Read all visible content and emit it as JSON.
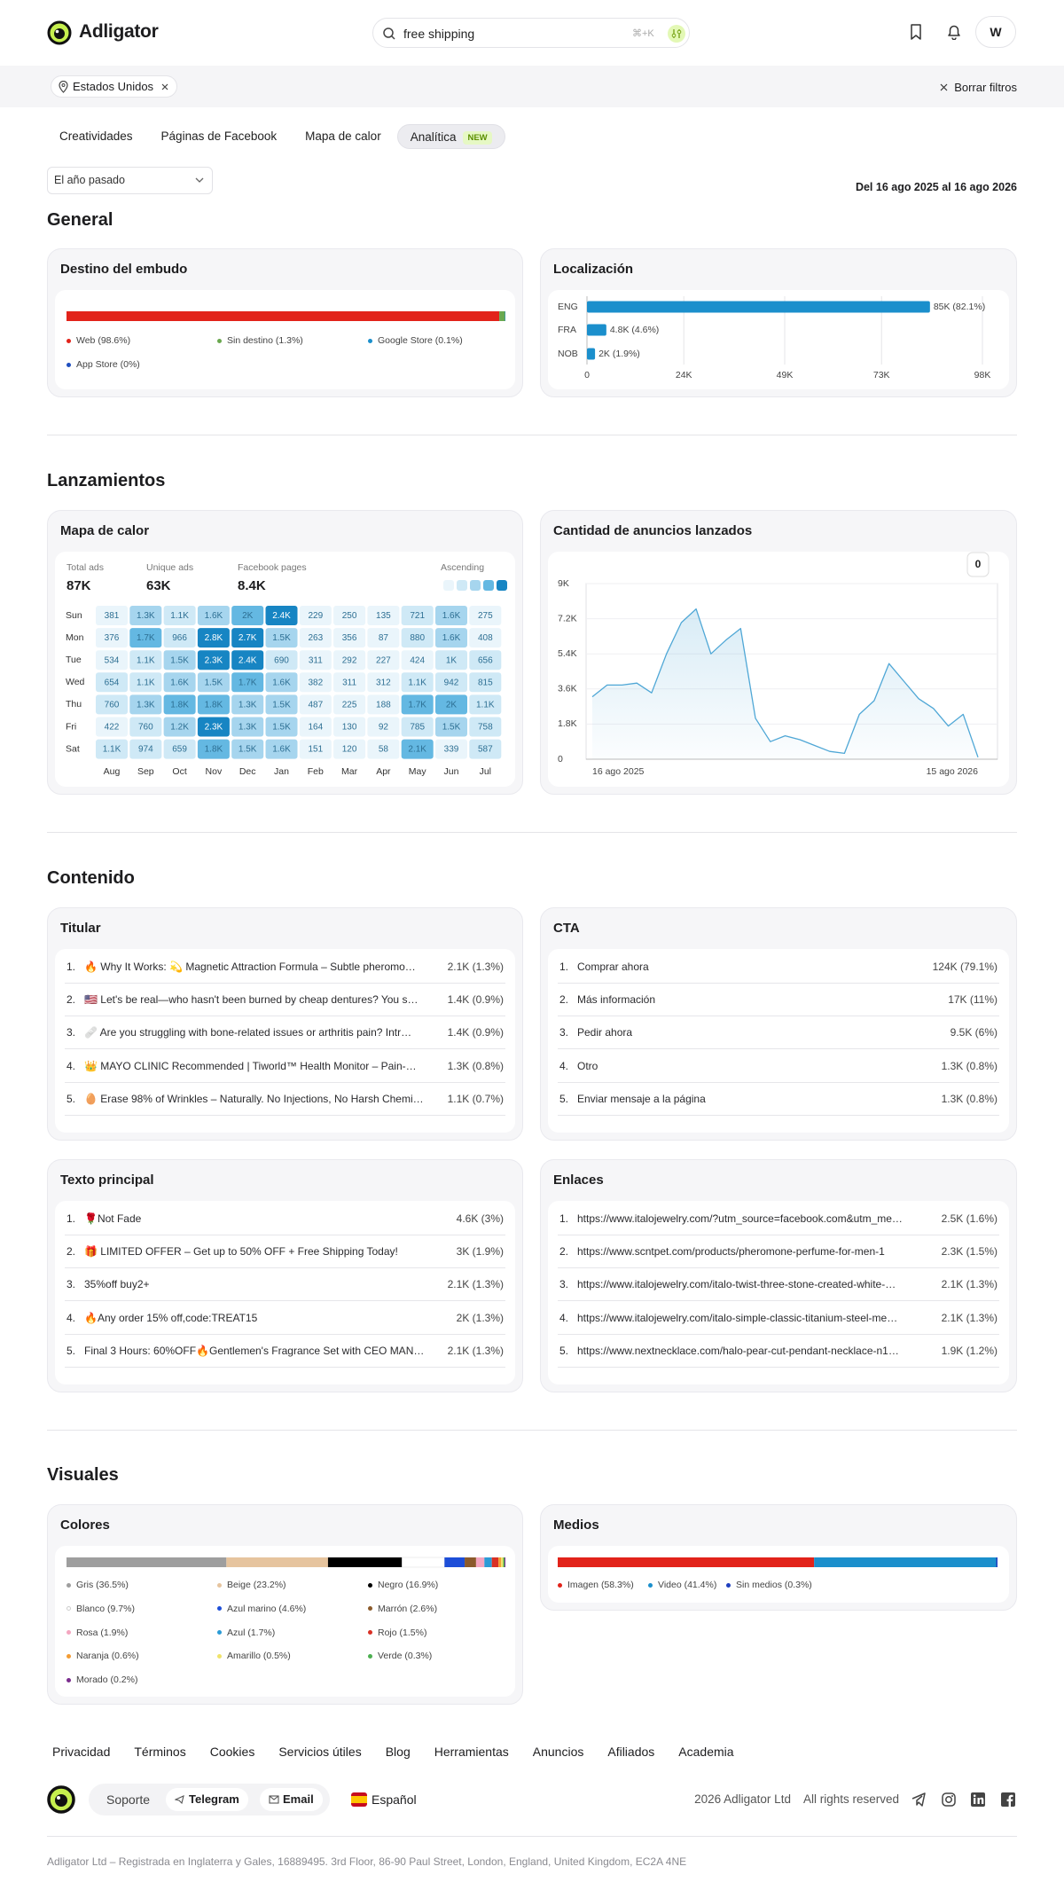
{
  "header": {
    "brand": "Adligator",
    "search": "free shipping",
    "shortcut": "⌘+K",
    "avatar": "W"
  },
  "filters": {
    "chip": "Estados Unidos",
    "clear": "Borrar filtros"
  },
  "tabs": {
    "items": [
      "Creatividades",
      "Páginas de Facebook",
      "Mapa de calor",
      "Analítica"
    ],
    "badge": "NEW",
    "active": 3
  },
  "period": "El año pasado",
  "date_range": "Del 16 ago 2025 al 16 ago 2026",
  "sections": {
    "general": "General",
    "launches": "Lanzamientos",
    "content": "Contenido",
    "visuals": "Visuales"
  },
  "funnel": {
    "title": "Destino del embudo",
    "type": "stacked-bar",
    "segments": [
      {
        "label": "Web (98.6%)",
        "value": 98.6,
        "color": "#e2231a"
      },
      {
        "label": "Sin destino (1.3%)",
        "value": 1.3,
        "color": "#6aa84f"
      },
      {
        "label": "Google Store (0.1%)",
        "value": 0.1,
        "color": "#1b8fcc"
      },
      {
        "label": "App Store (0%)",
        "value": 0,
        "color": "#1f4fbf"
      }
    ]
  },
  "localization": {
    "title": "Localización",
    "type": "bar",
    "categories": [
      "ENG",
      "FRA",
      "NOB"
    ],
    "values": [
      85000,
      4800,
      2000
    ],
    "value_labels": [
      "85K (82.1%)",
      "4.8K (4.6%)",
      "2K (1.9%)"
    ],
    "color": "#1b8fcc",
    "xlim": [
      0,
      98000
    ],
    "xticks": [
      0,
      {
        "value": 24000,
        "label": "24K"
      },
      {
        "value": 49000,
        "label": "49K"
      },
      {
        "value": 73000,
        "label": "73K"
      },
      {
        "value": 98000,
        "label": "98K"
      }
    ],
    "grid": true
  },
  "heatmap": {
    "title": "Mapa de calor",
    "type": "heatmap",
    "stats": [
      {
        "label": "Total ads",
        "value": "87K"
      },
      {
        "label": "Unique ads",
        "value": "63K"
      },
      {
        "label": "Facebook pages",
        "value": "8.4K"
      }
    ],
    "scale_label": "Ascending",
    "scale_colors": [
      "#eaf5fb",
      "#cfe9f6",
      "#a6d5ee",
      "#64b8e2",
      "#1785c3"
    ],
    "rows": [
      "Sun",
      "Mon",
      "Tue",
      "Wed",
      "Thu",
      "Fri",
      "Sat"
    ],
    "columns": [
      "Aug",
      "Sep",
      "Oct",
      "Nov",
      "Dec",
      "Jan",
      "Feb",
      "Mar",
      "Apr",
      "May",
      "Jun",
      "Jul"
    ],
    "values": [
      [
        381,
        1300,
        1100,
        1600,
        2000,
        2400,
        229,
        250,
        135,
        721,
        1600,
        275
      ],
      [
        376,
        1700,
        966,
        2800,
        2700,
        1500,
        263,
        356,
        87,
        880,
        1600,
        408
      ],
      [
        534,
        1100,
        1500,
        2300,
        2400,
        690,
        311,
        292,
        227,
        424,
        1000,
        656
      ],
      [
        654,
        1100,
        1600,
        1500,
        1700,
        1600,
        382,
        311,
        312,
        1100,
        942,
        815
      ],
      [
        760,
        1300,
        1800,
        1800,
        1300,
        1500,
        487,
        225,
        188,
        1700,
        2000,
        1100
      ],
      [
        422,
        760,
        1200,
        2300,
        1300,
        1500,
        164,
        130,
        92,
        785,
        1500,
        758
      ],
      [
        1100,
        974,
        659,
        1800,
        1500,
        1600,
        151,
        120,
        58,
        2100,
        339,
        587
      ]
    ],
    "value_labels": [
      [
        null,
        "1.3K",
        "1.1K",
        "1.6K",
        "2K",
        "2.4K",
        null,
        null,
        null,
        null,
        "1.6K",
        null
      ],
      [
        null,
        "1.7K",
        null,
        "2.8K",
        "2.7K",
        "1.5K",
        null,
        null,
        null,
        null,
        "1.6K",
        null
      ],
      [
        null,
        "1.1K",
        "1.5K",
        "2.3K",
        "2.4K",
        null,
        null,
        null,
        null,
        null,
        "1K",
        null
      ],
      [
        null,
        "1.1K",
        "1.6K",
        "1.5K",
        "1.7K",
        "1.6K",
        null,
        null,
        null,
        "1.1K",
        null,
        null
      ],
      [
        null,
        "1.3K",
        "1.8K",
        "1.8K",
        "1.3K",
        "1.5K",
        null,
        null,
        null,
        "1.7K",
        "2K",
        "1.1K"
      ],
      [
        null,
        null,
        "1.2K",
        "2.3K",
        "1.3K",
        "1.5K",
        null,
        null,
        null,
        null,
        "1.5K",
        null
      ],
      [
        "1.1K",
        null,
        null,
        "1.8K",
        "1.5K",
        "1.6K",
        null,
        null,
        null,
        "2.1K",
        null,
        null
      ]
    ]
  },
  "launches_chart": {
    "title": "Cantidad de anuncios lanzados",
    "type": "line",
    "badge": "0",
    "categories": [
      "16 ago 2025",
      null,
      null,
      null,
      null,
      null,
      null,
      null,
      null,
      null,
      null,
      null,
      null,
      null,
      null,
      null,
      null,
      null,
      null,
      null,
      null,
      null,
      null,
      null,
      null,
      null,
      "15 ago 2026"
    ],
    "values": [
      3200,
      3800,
      3800,
      3900,
      3400,
      5400,
      7000,
      7700,
      5400,
      6100,
      6700,
      2100,
      900,
      1200,
      1000,
      700,
      400,
      300,
      2300,
      3000,
      4900,
      4000,
      3100,
      2600,
      1700,
      2300,
      100
    ],
    "color": "#4fa7d6",
    "ylim": [
      0,
      9000
    ],
    "yticks": [
      0,
      {
        "value": 1800,
        "label": "1.8K"
      },
      {
        "value": 3600,
        "label": "3.6K"
      },
      {
        "value": 5400,
        "label": "5.4K"
      },
      {
        "value": 7200,
        "label": "7.2K"
      },
      {
        "value": 9000,
        "label": "9K"
      }
    ]
  },
  "headlines": {
    "title": "Titular",
    "items": [
      {
        "rank": "1.",
        "text": "🔥 Why It Works: 💫 Magnetic Attraction Formula – Subtle pheromo…",
        "count": "2.1K (1.3%)"
      },
      {
        "rank": "2.",
        "text": "🇺🇸 Let's be real—who hasn't been burned by cheap dentures? You s…",
        "count": "1.4K (0.9%)"
      },
      {
        "rank": "3.",
        "text": "🩹 Are you struggling with bone-related issues or arthritis pain? Intr…",
        "count": "1.4K (0.9%)"
      },
      {
        "rank": "4.",
        "text": "👑 MAYO CLINIC Recommended | Tiworld™ Health Monitor – Pain-…",
        "count": "1.3K (0.8%)"
      },
      {
        "rank": "5.",
        "text": "🥚 Erase 98% of Wrinkles – Naturally. No Injections, No Harsh Chemi…",
        "count": "1.1K (0.7%)"
      }
    ]
  },
  "cta": {
    "title": "CTA",
    "items": [
      {
        "rank": "1.",
        "text": "Comprar ahora",
        "count": "124K (79.1%)"
      },
      {
        "rank": "2.",
        "text": "Más información",
        "count": "17K (11%)"
      },
      {
        "rank": "3.",
        "text": "Pedir ahora",
        "count": "9.5K (6%)"
      },
      {
        "rank": "4.",
        "text": "Otro",
        "count": "1.3K (0.8%)"
      },
      {
        "rank": "5.",
        "text": "Enviar mensaje a la página",
        "count": "1.3K (0.8%)"
      }
    ]
  },
  "body_text": {
    "title": "Texto principal",
    "items": [
      {
        "rank": "1.",
        "text": "🌹Not Fade",
        "count": "4.6K (3%)"
      },
      {
        "rank": "2.",
        "text": "🎁 LIMITED OFFER – Get up to 50% OFF + Free Shipping Today!",
        "count": "3K (1.9%)"
      },
      {
        "rank": "3.",
        "text": "35%off buy2+",
        "count": "2.1K (1.3%)"
      },
      {
        "rank": "4.",
        "text": "🔥Any order 15% off,code:TREAT15",
        "count": "2K (1.3%)"
      },
      {
        "rank": "5.",
        "text": "Final 3 Hours: 60%OFF🔥Gentlemen's Fragrance Set with CEO MAN…",
        "count": "2.1K (1.3%)"
      }
    ]
  },
  "links": {
    "title": "Enlaces",
    "items": [
      {
        "rank": "1.",
        "text": "https://www.italojewelry.com/?utm_source=facebook.com&utm_me…",
        "count": "2.5K (1.6%)"
      },
      {
        "rank": "2.",
        "text": "https://www.scntpet.com/products/pheromone-perfume-for-men-1",
        "count": "2.3K (1.5%)"
      },
      {
        "rank": "3.",
        "text": "https://www.italojewelry.com/italo-twist-three-stone-created-white-…",
        "count": "2.1K (1.3%)"
      },
      {
        "rank": "4.",
        "text": "https://www.italojewelry.com/italo-simple-classic-titanium-steel-me…",
        "count": "2.1K (1.3%)"
      },
      {
        "rank": "5.",
        "text": "https://www.nextnecklace.com/halo-pear-cut-pendant-necklace-n1…",
        "count": "1.9K (1.2%)"
      }
    ]
  },
  "colors": {
    "title": "Colores",
    "type": "stacked-bar",
    "segments": [
      {
        "label": "Gris (36.5%)",
        "value": 36.5,
        "color": "#9e9e9e"
      },
      {
        "label": "Beige (23.2%)",
        "value": 23.2,
        "color": "#e6c49e"
      },
      {
        "label": "Negro (16.9%)",
        "value": 16.9,
        "color": "#000000"
      },
      {
        "label": "Blanco (9.7%)",
        "value": 9.7,
        "color": "#ffffff"
      },
      {
        "label": "Azul marino (4.6%)",
        "value": 4.6,
        "color": "#1d4ed8"
      },
      {
        "label": "Marrón (2.6%)",
        "value": 2.6,
        "color": "#8b5a2b"
      },
      {
        "label": "Rosa (1.9%)",
        "value": 1.9,
        "color": "#f4a6c0"
      },
      {
        "label": "Azul (1.7%)",
        "value": 1.7,
        "color": "#2b9bd6"
      },
      {
        "label": "Rojo (1.5%)",
        "value": 1.5,
        "color": "#d93025"
      },
      {
        "label": "Naranja (0.6%)",
        "value": 0.6,
        "color": "#f39c34"
      },
      {
        "label": "Amarillo (0.5%)",
        "value": 0.5,
        "color": "#f0e36a"
      },
      {
        "label": "Verde (0.3%)",
        "value": 0.3,
        "color": "#4caf50"
      },
      {
        "label": "Morado (0.2%)",
        "value": 0.2,
        "color": "#7b2d8e"
      }
    ]
  },
  "media": {
    "title": "Medios",
    "type": "stacked-bar",
    "segments": [
      {
        "label": "Imagen (58.3%)",
        "value": 58.3,
        "color": "#e2231a"
      },
      {
        "label": "Video (41.4%)",
        "value": 41.4,
        "color": "#1b8fcc"
      },
      {
        "label": "Sin medios (0.3%)",
        "value": 0.3,
        "color": "#1f3fbf"
      }
    ]
  },
  "footer": {
    "links": [
      "Privacidad",
      "Términos",
      "Cookies",
      "Servicios útiles",
      "Blog",
      "Herramientas",
      "Anuncios",
      "Afiliados",
      "Academia"
    ],
    "support": "Soporte",
    "telegram": "Telegram",
    "email": "Email",
    "language": "Español",
    "copyright": "2026 Adligator Ltd",
    "rights": "All rights reserved",
    "legal": "Adligator Ltd – Registrada en Inglaterra y Gales, 16889495. 3rd Floor, 86-90 Paul Street, London, England, United Kingdom, EC2A 4NE"
  }
}
